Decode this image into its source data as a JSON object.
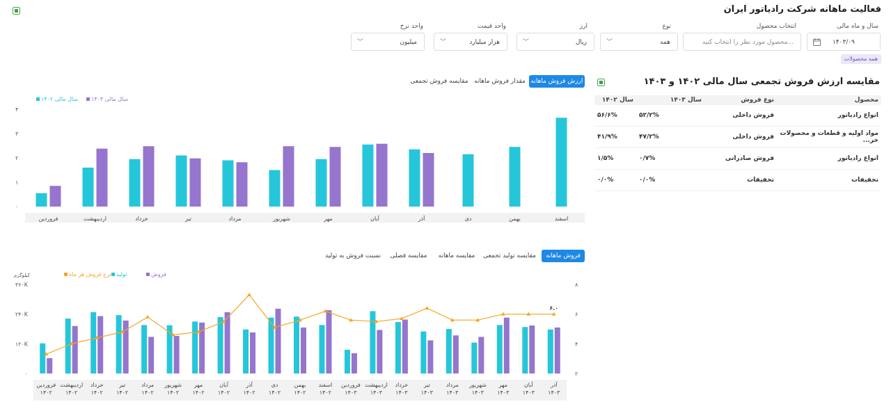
{
  "page": {
    "title": "فعالیت ماهانه شرکت رادیاتور ایران"
  },
  "filters": {
    "fiscal_label": "سال و ماه مالی",
    "fiscal_value": "۱۴۰۳/۰۹",
    "product_label": "انتخاب محصول",
    "product_placeholder": "محصول مورد نظر را انتخاب کنید...",
    "type_label": "نوع",
    "type_value": "همه",
    "currency_label": "ارز",
    "currency_value": "ریال",
    "price_unit_label": "واحد قیمت",
    "price_unit_value": "هزار میلیارد",
    "rate_unit_label": "واحد نرخ",
    "rate_unit_value": "میلیون",
    "all_products_badge": "همه محصولات"
  },
  "colors": {
    "teal": "#26c6da",
    "purple": "#9575cd",
    "orange": "#f5a623",
    "accent": "#1e88e5"
  },
  "table": {
    "title": "مقایسه ارزش فروش تجمعی سال مالی ۱۴۰۲ و ۱۴۰۳",
    "headers": [
      "محصول",
      "نوع فروش",
      "سال ۱۴۰۳",
      "سال ۱۴۰۲"
    ],
    "rows": [
      {
        "product": "انواع رادیاتور",
        "type": "فروش داخلی",
        "y1403": "۵۲/۲%",
        "y1402": "۵۶/۶%"
      },
      {
        "product": "مواد اولیه و قطعات و محصولات خر...",
        "type": "فروش داخلی",
        "y1403": "۴۷/۲%",
        "y1402": "۴۱/۹%"
      },
      {
        "product": "انواع رادیاتور",
        "type": "فروش صادراتی",
        "y1403": "۰/۷%",
        "y1402": "۱/۵%"
      },
      {
        "product": "تخفیفات",
        "type": "تخفیفات",
        "y1403": "۰/۰%",
        "y1402": "۰/۰%"
      }
    ]
  },
  "chart1_tabs": [
    "ارزش فروش ماهانه",
    "مقدار فروش ماهانه",
    "مقایسه فروش تجمعی"
  ],
  "chart2_tabs": [
    "فروش ماهانه",
    "مقایسه تولید تجمعی",
    "مقایسه ماهانه",
    "مقایسه فصلی",
    "نسبت فروش به تولید"
  ],
  "chart_data": [
    {
      "type": "bar",
      "series": [
        {
          "name": "سال مالی ۱۴۰۲",
          "color": "#26c6da",
          "values": [
            0.55,
            1.6,
            1.95,
            2.1,
            1.9,
            1.5,
            1.95,
            2.55,
            2.35,
            2.15,
            2.45,
            3.65
          ]
        },
        {
          "name": "سال مالی ۱۴۰۳",
          "color": "#9575cd",
          "values": [
            0.85,
            2.38,
            2.48,
            1.98,
            1.82,
            2.48,
            2.45,
            2.58,
            2.2,
            null,
            null,
            null
          ]
        }
      ],
      "categories": [
        "فروردین",
        "اردیبهشت",
        "خرداد",
        "تیر",
        "مرداد",
        "شهریور",
        "مهر",
        "آبان",
        "آذر",
        "دی",
        "بهمن",
        "اسفند"
      ],
      "yticks": [
        "۰",
        "۱",
        "۲",
        "۳",
        "۴"
      ],
      "ylim": [
        0,
        4
      ]
    },
    {
      "type": "bar+line",
      "ylabel": "کیلوگرم",
      "yticks_left": [
        "۰",
        "۱۲۰K",
        "۲۴۰K",
        "۳۶۰K"
      ],
      "yticks_right": [
        "۲",
        "۴",
        "۶",
        "۸"
      ],
      "ylim_left": [
        0,
        360000
      ],
      "ylim_right": [
        2,
        8
      ],
      "series": [
        {
          "name": "تولید",
          "color": "#26c6da",
          "axis": "left",
          "values": [
            122000,
            222000,
            248000,
            236000,
            196000,
            195000,
            210000,
            228000,
            178000,
            226000,
            230000,
            196000,
            96000,
            252000,
            208000,
            170000,
            180000,
            125000,
            196000,
            188000,
            178000
          ]
        },
        {
          "name": "فروش",
          "color": "#9575cd",
          "axis": "left",
          "values": [
            62000,
            192000,
            232000,
            214000,
            148000,
            152000,
            206000,
            248000,
            166000,
            262000,
            186000,
            256000,
            82000,
            176000,
            218000,
            134000,
            154000,
            148000,
            226000,
            194000,
            186000
          ]
        },
        {
          "name": "نرخ فروش هر ماه",
          "color": "#f5a623",
          "axis": "right",
          "values": [
            3.3,
            4.0,
            4.4,
            4.8,
            5.8,
            4.6,
            4.8,
            5.5,
            7.3,
            5.1,
            5.6,
            6.2,
            5.6,
            5.5,
            5.7,
            6.4,
            5.6,
            5.6,
            6.0,
            6.0,
            6.0
          ]
        }
      ],
      "categories": [
        [
          "فروردین",
          "۱۴۰۲"
        ],
        [
          "اردیبهشت",
          "۱۴۰۲"
        ],
        [
          "خرداد",
          "۱۴۰۲"
        ],
        [
          "تیر",
          "۱۴۰۲"
        ],
        [
          "مرداد",
          "۱۴۰۲"
        ],
        [
          "شهریور",
          "۱۴۰۲"
        ],
        [
          "مهر",
          "۱۴۰۲"
        ],
        [
          "آبان",
          "۱۴۰۲"
        ],
        [
          "آذر",
          "۱۴۰۲"
        ],
        [
          "دی",
          "۱۴۰۲"
        ],
        [
          "بهمن",
          "۱۴۰۲"
        ],
        [
          "اسفند",
          "۱۴۰۲"
        ],
        [
          "فروردین",
          "۱۴۰۳"
        ],
        [
          "اردیبهشت",
          "۱۴۰۳"
        ],
        [
          "خرداد",
          "۱۴۰۳"
        ],
        [
          "تیر",
          "۱۴۰۳"
        ],
        [
          "مرداد",
          "۱۴۰۳"
        ],
        [
          "شهریور",
          "۱۴۰۳"
        ],
        [
          "مهر",
          "۱۴۰۳"
        ],
        [
          "آبان",
          "۱۴۰۳"
        ],
        [
          "آذر",
          "۱۴۰۳"
        ]
      ],
      "last_rate_label": "۶.۰"
    }
  ]
}
